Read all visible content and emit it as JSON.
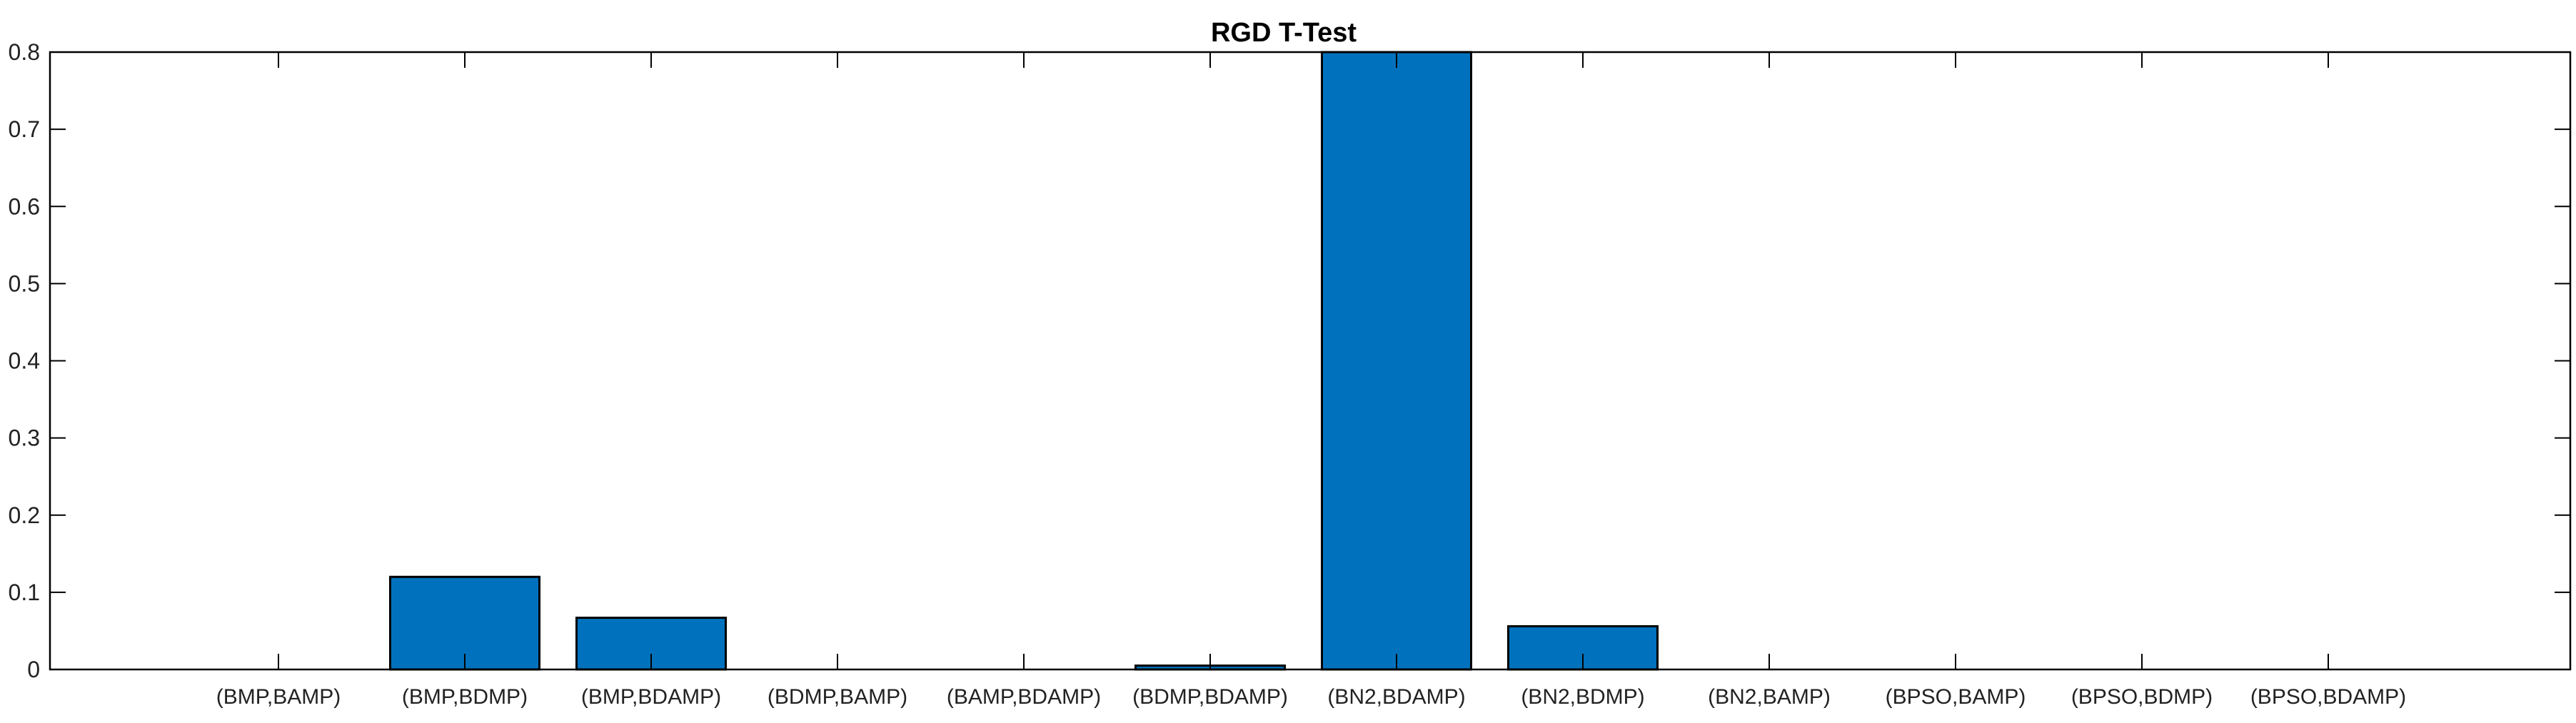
{
  "chart_data": {
    "type": "bar",
    "title": "RGD T-Test",
    "xlabel": "",
    "ylabel": "",
    "categories": [
      "(BMP,BAMP)",
      "(BMP,BDMP)",
      "(BMP,BDAMP)",
      "(BDMP,BAMP)",
      "(BAMP,BDAMP)",
      "(BDMP,BDAMP)",
      "(BN2,BDAMP)",
      "(BN2,BDMP)",
      "(BN2,BAMP)",
      "(BPSO,BAMP)",
      "(BPSO,BDMP)",
      "(BPSO,BDAMP)"
    ],
    "values": [
      0,
      0.12,
      0.067,
      0,
      0,
      0.005,
      0.8,
      0.056,
      0,
      0,
      0,
      0
    ],
    "ylim": [
      0,
      0.8
    ],
    "yticks": [
      "0",
      "0.1",
      "0.2",
      "0.3",
      "0.4",
      "0.5",
      "0.6",
      "0.7",
      "0.8"
    ],
    "grid": false,
    "bar_color": "#0072BD",
    "edge_color": "#000000"
  }
}
